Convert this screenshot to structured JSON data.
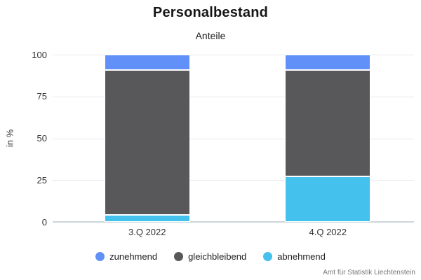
{
  "title": "Personalbestand",
  "subtitle": "Anteile",
  "source": "Amt für Statistik Liechtenstein",
  "colors": {
    "zunehmend": "#6191F8",
    "gleichbleibend": "#58585B",
    "abnehmend": "#45C1EE",
    "gridline": "#E8E8E8",
    "axisline": "#CCD6DD"
  },
  "chart_data": {
    "type": "bar",
    "stacked": true,
    "title": "Personalbestand",
    "subtitle": "Anteile",
    "categories": [
      "3.Q 2022",
      "4.Q 2022"
    ],
    "series": [
      {
        "name": "zunehmend",
        "color": "#6191F8",
        "values": [
          9,
          9
        ]
      },
      {
        "name": "gleichbleibend",
        "color": "#58585B",
        "values": [
          87,
          64
        ]
      },
      {
        "name": "abnehmend",
        "color": "#45C1EE",
        "values": [
          4,
          27
        ]
      }
    ],
    "xlabel": "",
    "ylabel": "in %",
    "ylim": [
      0,
      100
    ],
    "yticks": [
      0,
      25,
      50,
      75,
      100
    ],
    "grid": true,
    "legend_position": "bottom",
    "source_note": "Amt für Statistik Liechtenstein"
  }
}
